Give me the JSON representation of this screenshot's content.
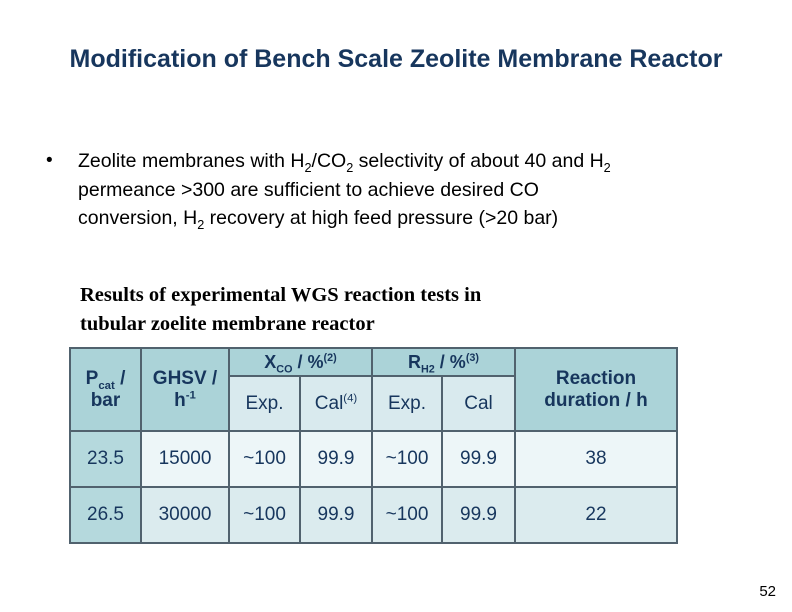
{
  "slide": {
    "title": "Modification of Bench Scale Zeolite Membrane Reactor",
    "page_number": "52"
  },
  "bullet": {
    "marker": "•",
    "segments": [
      {
        "t": "text",
        "v": "Zeolite membranes with H"
      },
      {
        "t": "sub",
        "v": "2"
      },
      {
        "t": "text",
        "v": "/CO"
      },
      {
        "t": "sub",
        "v": "2"
      },
      {
        "t": "text",
        "v": " selectivity of about 40 and H"
      },
      {
        "t": "sub",
        "v": "2"
      },
      {
        "t": "br"
      },
      {
        "t": "text",
        "v": "permeance >300 are sufficient to achieve desired CO"
      },
      {
        "t": "br"
      },
      {
        "t": "text",
        "v": "conversion, H"
      },
      {
        "t": "sub",
        "v": "2"
      },
      {
        "t": "text",
        "v": " recovery at high feed pressure (>20 bar)"
      }
    ]
  },
  "table_caption": {
    "line1": "Results of experimental WGS reaction tests in",
    "line2": "tubular zoelite membrane reactor"
  },
  "table": {
    "headers": {
      "pcat": [
        {
          "t": "text",
          "v": "P"
        },
        {
          "t": "sub",
          "v": "cat"
        },
        {
          "t": "text",
          "v": " /"
        },
        {
          "t": "br"
        },
        {
          "t": "text",
          "v": "bar"
        }
      ],
      "ghsv": [
        {
          "t": "text",
          "v": "GHSV /"
        },
        {
          "t": "br"
        },
        {
          "t": "text",
          "v": "h"
        },
        {
          "t": "sup",
          "v": "-1"
        }
      ],
      "xco": [
        {
          "t": "text",
          "v": "X"
        },
        {
          "t": "sub",
          "v": "CO"
        },
        {
          "t": "text",
          "v": " / %"
        },
        {
          "t": "sup",
          "v": "(2)"
        }
      ],
      "rh2": [
        {
          "t": "text",
          "v": "R"
        },
        {
          "t": "sub",
          "v": "H2"
        },
        {
          "t": "text",
          "v": " / %"
        },
        {
          "t": "sup",
          "v": "(3)"
        }
      ],
      "xco_exp": [
        {
          "t": "text",
          "v": "Exp."
        }
      ],
      "xco_cal": [
        {
          "t": "text",
          "v": "Cal"
        },
        {
          "t": "sup",
          "v": "(4)"
        }
      ],
      "rh2_exp": [
        {
          "t": "text",
          "v": "Exp."
        }
      ],
      "rh2_cal": [
        {
          "t": "text",
          "v": "Cal"
        }
      ],
      "duration": [
        {
          "t": "text",
          "v": "Reaction"
        },
        {
          "t": "br"
        },
        {
          "t": "text",
          "v": "duration / h"
        }
      ]
    },
    "rows": [
      {
        "pcat": "23.5",
        "ghsv": "15000",
        "xco_exp": "~100",
        "xco_cal": "99.9",
        "rh2_exp": "~100",
        "rh2_cal": "99.9",
        "duration": "38"
      },
      {
        "pcat": "26.5",
        "ghsv": "30000",
        "xco_exp": "~100",
        "xco_cal": "99.9",
        "rh2_exp": "~100",
        "rh2_cal": "99.9",
        "duration": "22"
      }
    ]
  },
  "colors": {
    "navy": "#17365d",
    "text_black": "#000000",
    "header_teal": "#abd3d8",
    "subheader_bg": "#d9eaee",
    "firstcol_bg": "#b5d9dd",
    "row1_bg": "#edf6f8",
    "row2_bg": "#dbebee",
    "border": "#51626e",
    "slide_bg": "#ffffff"
  }
}
